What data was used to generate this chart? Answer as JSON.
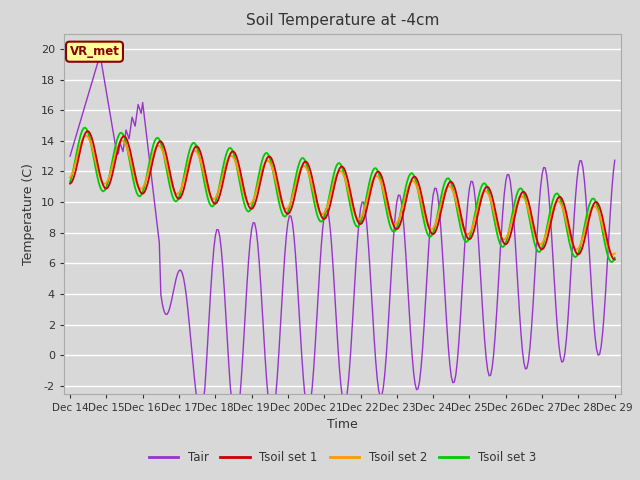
{
  "title": "Soil Temperature at -4cm",
  "xlabel": "Time",
  "ylabel": "Temperature (C)",
  "ylim": [
    -2.5,
    21.0
  ],
  "background_color": "#d8d8d8",
  "plot_bg_color": "#d8d8d8",
  "grid_color": "#ffffff",
  "xtick_labels": [
    "Dec 14",
    "Dec 15",
    "Dec 16",
    "Dec 17",
    "Dec 18",
    "Dec 19",
    "Dec 20",
    "Dec 21",
    "Dec 22",
    "Dec 23",
    "Dec 24",
    "Dec 25",
    "Dec 26",
    "Dec 27",
    "Dec 28",
    "Dec 29"
  ],
  "ytick_labels": [
    "-2",
    "0",
    "2",
    "4",
    "6",
    "8",
    "10",
    "12",
    "14",
    "16",
    "18",
    "20"
  ],
  "ytick_values": [
    -2,
    0,
    2,
    4,
    6,
    8,
    10,
    12,
    14,
    16,
    18,
    20
  ],
  "legend_label_box": "VR_met",
  "line_colors": {
    "Tair": "#9933cc",
    "Tsoil1": "#cc0000",
    "Tsoil2": "#ff9900",
    "Tsoil3": "#00cc00"
  },
  "legend_labels": [
    "Tair",
    "Tsoil set 1",
    "Tsoil set 2",
    "Tsoil set 3"
  ]
}
